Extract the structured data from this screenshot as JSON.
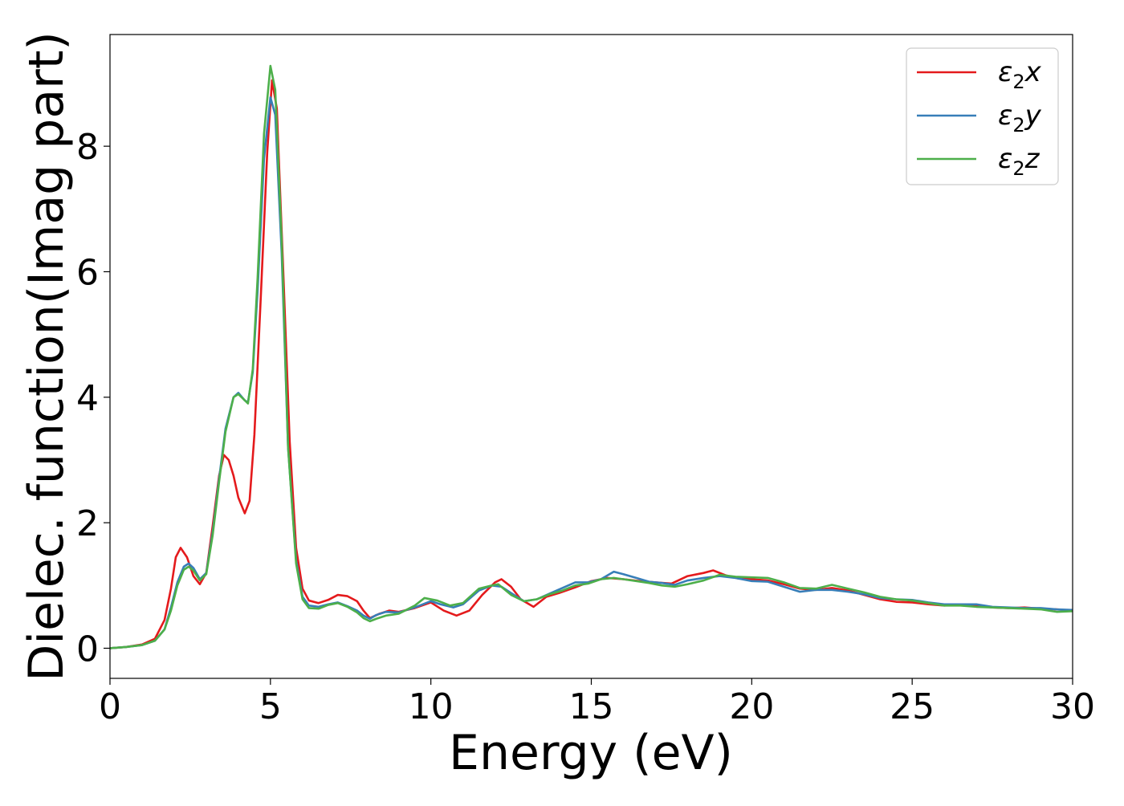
{
  "chart_data": {
    "type": "line",
    "title": "",
    "xlabel": "Energy (eV)",
    "ylabel": "Dielec. function(Imag part)",
    "xlim": [
      0,
      30
    ],
    "ylim": [
      -0.48,
      9.78
    ],
    "xticks": [
      0,
      5,
      10,
      15,
      20,
      25,
      30
    ],
    "yticks": [
      0,
      2,
      4,
      6,
      8
    ],
    "grid": false,
    "legend": "top-right",
    "series": [
      {
        "name": "ε2x",
        "legend_main": "ε",
        "legend_sub": "2",
        "legend_tail": "x",
        "color": "#e41a1c",
        "points": [
          [
            0,
            0.0
          ],
          [
            0.5,
            0.02
          ],
          [
            1.0,
            0.06
          ],
          [
            1.4,
            0.15
          ],
          [
            1.7,
            0.45
          ],
          [
            1.9,
            0.95
          ],
          [
            2.05,
            1.45
          ],
          [
            2.2,
            1.6
          ],
          [
            2.4,
            1.45
          ],
          [
            2.6,
            1.15
          ],
          [
            2.8,
            1.02
          ],
          [
            3.0,
            1.2
          ],
          [
            3.2,
            1.95
          ],
          [
            3.4,
            2.75
          ],
          [
            3.55,
            3.08
          ],
          [
            3.7,
            3.0
          ],
          [
            3.85,
            2.75
          ],
          [
            4.0,
            2.4
          ],
          [
            4.2,
            2.15
          ],
          [
            4.35,
            2.35
          ],
          [
            4.5,
            3.4
          ],
          [
            4.7,
            5.6
          ],
          [
            4.9,
            7.9
          ],
          [
            5.05,
            9.05
          ],
          [
            5.2,
            8.6
          ],
          [
            5.4,
            6.0
          ],
          [
            5.6,
            3.3
          ],
          [
            5.8,
            1.6
          ],
          [
            6.0,
            0.95
          ],
          [
            6.2,
            0.76
          ],
          [
            6.5,
            0.72
          ],
          [
            6.8,
            0.77
          ],
          [
            7.1,
            0.85
          ],
          [
            7.4,
            0.83
          ],
          [
            7.7,
            0.75
          ],
          [
            7.9,
            0.6
          ],
          [
            8.1,
            0.48
          ],
          [
            8.4,
            0.55
          ],
          [
            8.7,
            0.6
          ],
          [
            9.0,
            0.58
          ],
          [
            9.5,
            0.64
          ],
          [
            10.0,
            0.73
          ],
          [
            10.4,
            0.6
          ],
          [
            10.8,
            0.52
          ],
          [
            11.2,
            0.6
          ],
          [
            11.6,
            0.85
          ],
          [
            12.0,
            1.05
          ],
          [
            12.2,
            1.1
          ],
          [
            12.5,
            0.98
          ],
          [
            12.8,
            0.78
          ],
          [
            13.2,
            0.66
          ],
          [
            13.6,
            0.82
          ],
          [
            14.0,
            0.88
          ],
          [
            14.5,
            0.97
          ],
          [
            15.0,
            1.07
          ],
          [
            15.5,
            1.12
          ],
          [
            16.0,
            1.1
          ],
          [
            16.5,
            1.07
          ],
          [
            17.0,
            1.05
          ],
          [
            17.5,
            1.03
          ],
          [
            18.0,
            1.15
          ],
          [
            18.5,
            1.2
          ],
          [
            18.8,
            1.24
          ],
          [
            19.2,
            1.16
          ],
          [
            19.6,
            1.11
          ],
          [
            20.0,
            1.1
          ],
          [
            20.5,
            1.08
          ],
          [
            21.0,
            1.02
          ],
          [
            21.5,
            0.95
          ],
          [
            22.0,
            0.93
          ],
          [
            22.5,
            0.96
          ],
          [
            23.0,
            0.92
          ],
          [
            23.5,
            0.85
          ],
          [
            24.0,
            0.78
          ],
          [
            24.5,
            0.74
          ],
          [
            25.0,
            0.73
          ],
          [
            25.5,
            0.7
          ],
          [
            26.0,
            0.68
          ],
          [
            26.5,
            0.7
          ],
          [
            27.0,
            0.68
          ],
          [
            27.5,
            0.65
          ],
          [
            28.0,
            0.64
          ],
          [
            28.5,
            0.65
          ],
          [
            29.0,
            0.63
          ],
          [
            29.5,
            0.62
          ],
          [
            30.0,
            0.6
          ]
        ]
      },
      {
        "name": "ε2y",
        "legend_main": "ε",
        "legend_sub": "2",
        "legend_tail": "y",
        "color": "#377eb8",
        "points": [
          [
            0,
            0.0
          ],
          [
            0.5,
            0.02
          ],
          [
            1.0,
            0.05
          ],
          [
            1.4,
            0.12
          ],
          [
            1.7,
            0.3
          ],
          [
            1.9,
            0.65
          ],
          [
            2.1,
            1.05
          ],
          [
            2.3,
            1.3
          ],
          [
            2.45,
            1.35
          ],
          [
            2.6,
            1.28
          ],
          [
            2.8,
            1.1
          ],
          [
            3.0,
            1.2
          ],
          [
            3.2,
            1.85
          ],
          [
            3.4,
            2.7
          ],
          [
            3.6,
            3.5
          ],
          [
            3.85,
            4.0
          ],
          [
            4.0,
            4.07
          ],
          [
            4.2,
            3.95
          ],
          [
            4.3,
            3.92
          ],
          [
            4.45,
            4.4
          ],
          [
            4.6,
            5.7
          ],
          [
            4.8,
            7.8
          ],
          [
            5.0,
            8.78
          ],
          [
            5.15,
            8.5
          ],
          [
            5.35,
            6.3
          ],
          [
            5.55,
            3.2
          ],
          [
            5.8,
            1.4
          ],
          [
            6.0,
            0.82
          ],
          [
            6.2,
            0.68
          ],
          [
            6.5,
            0.66
          ],
          [
            6.8,
            0.7
          ],
          [
            7.1,
            0.73
          ],
          [
            7.4,
            0.67
          ],
          [
            7.7,
            0.6
          ],
          [
            7.9,
            0.52
          ],
          [
            8.1,
            0.47
          ],
          [
            8.3,
            0.53
          ],
          [
            8.6,
            0.58
          ],
          [
            9.0,
            0.57
          ],
          [
            9.5,
            0.65
          ],
          [
            10.0,
            0.75
          ],
          [
            10.3,
            0.7
          ],
          [
            10.7,
            0.65
          ],
          [
            11.0,
            0.7
          ],
          [
            11.5,
            0.92
          ],
          [
            11.9,
            1.0
          ],
          [
            12.2,
            0.98
          ],
          [
            12.5,
            0.88
          ],
          [
            12.9,
            0.75
          ],
          [
            13.3,
            0.78
          ],
          [
            13.7,
            0.87
          ],
          [
            14.1,
            0.96
          ],
          [
            14.5,
            1.05
          ],
          [
            14.9,
            1.05
          ],
          [
            15.3,
            1.1
          ],
          [
            15.7,
            1.22
          ],
          [
            16.0,
            1.18
          ],
          [
            16.4,
            1.12
          ],
          [
            16.8,
            1.06
          ],
          [
            17.2,
            1.04
          ],
          [
            17.6,
            1.01
          ],
          [
            18.0,
            1.08
          ],
          [
            18.5,
            1.12
          ],
          [
            19.0,
            1.15
          ],
          [
            19.5,
            1.12
          ],
          [
            20.0,
            1.07
          ],
          [
            20.5,
            1.06
          ],
          [
            21.0,
            0.98
          ],
          [
            21.5,
            0.9
          ],
          [
            22.0,
            0.93
          ],
          [
            22.5,
            0.93
          ],
          [
            23.0,
            0.9
          ],
          [
            23.5,
            0.86
          ],
          [
            24.0,
            0.8
          ],
          [
            24.5,
            0.78
          ],
          [
            25.0,
            0.77
          ],
          [
            25.5,
            0.73
          ],
          [
            26.0,
            0.7
          ],
          [
            26.5,
            0.7
          ],
          [
            27.0,
            0.7
          ],
          [
            27.5,
            0.66
          ],
          [
            28.0,
            0.65
          ],
          [
            28.5,
            0.64
          ],
          [
            29.0,
            0.64
          ],
          [
            29.5,
            0.62
          ],
          [
            30.0,
            0.61
          ]
        ]
      },
      {
        "name": "ε2z",
        "legend_main": "ε",
        "legend_sub": "2",
        "legend_tail": "z",
        "color": "#4daf4a",
        "points": [
          [
            0,
            0.0
          ],
          [
            0.5,
            0.02
          ],
          [
            1.0,
            0.05
          ],
          [
            1.4,
            0.12
          ],
          [
            1.7,
            0.3
          ],
          [
            1.9,
            0.6
          ],
          [
            2.1,
            1.0
          ],
          [
            2.3,
            1.25
          ],
          [
            2.45,
            1.3
          ],
          [
            2.6,
            1.24
          ],
          [
            2.8,
            1.08
          ],
          [
            3.0,
            1.18
          ],
          [
            3.2,
            1.8
          ],
          [
            3.4,
            2.65
          ],
          [
            3.6,
            3.45
          ],
          [
            3.85,
            4.0
          ],
          [
            4.0,
            4.05
          ],
          [
            4.2,
            3.95
          ],
          [
            4.3,
            3.9
          ],
          [
            4.45,
            4.45
          ],
          [
            4.6,
            5.9
          ],
          [
            4.8,
            8.2
          ],
          [
            5.0,
            9.28
          ],
          [
            5.15,
            8.9
          ],
          [
            5.35,
            6.5
          ],
          [
            5.55,
            3.2
          ],
          [
            5.8,
            1.35
          ],
          [
            6.0,
            0.78
          ],
          [
            6.2,
            0.64
          ],
          [
            6.5,
            0.63
          ],
          [
            6.8,
            0.69
          ],
          [
            7.1,
            0.72
          ],
          [
            7.4,
            0.66
          ],
          [
            7.7,
            0.57
          ],
          [
            7.9,
            0.48
          ],
          [
            8.1,
            0.43
          ],
          [
            8.3,
            0.47
          ],
          [
            8.6,
            0.52
          ],
          [
            9.0,
            0.55
          ],
          [
            9.5,
            0.68
          ],
          [
            9.8,
            0.8
          ],
          [
            10.2,
            0.76
          ],
          [
            10.6,
            0.68
          ],
          [
            11.0,
            0.72
          ],
          [
            11.5,
            0.95
          ],
          [
            11.9,
            1.0
          ],
          [
            12.1,
            1.02
          ],
          [
            12.5,
            0.85
          ],
          [
            12.9,
            0.75
          ],
          [
            13.3,
            0.78
          ],
          [
            13.7,
            0.86
          ],
          [
            14.1,
            0.92
          ],
          [
            14.5,
            1.0
          ],
          [
            14.9,
            1.03
          ],
          [
            15.3,
            1.1
          ],
          [
            15.7,
            1.12
          ],
          [
            16.0,
            1.1
          ],
          [
            16.4,
            1.07
          ],
          [
            16.8,
            1.04
          ],
          [
            17.2,
            1.0
          ],
          [
            17.6,
            0.98
          ],
          [
            18.0,
            1.02
          ],
          [
            18.5,
            1.08
          ],
          [
            19.0,
            1.17
          ],
          [
            19.5,
            1.14
          ],
          [
            20.0,
            1.13
          ],
          [
            20.5,
            1.12
          ],
          [
            21.0,
            1.05
          ],
          [
            21.5,
            0.96
          ],
          [
            22.0,
            0.95
          ],
          [
            22.5,
            1.01
          ],
          [
            23.0,
            0.95
          ],
          [
            23.5,
            0.89
          ],
          [
            24.0,
            0.82
          ],
          [
            24.5,
            0.78
          ],
          [
            25.0,
            0.76
          ],
          [
            25.5,
            0.72
          ],
          [
            26.0,
            0.68
          ],
          [
            26.5,
            0.68
          ],
          [
            27.0,
            0.66
          ],
          [
            27.5,
            0.65
          ],
          [
            28.0,
            0.64
          ],
          [
            28.5,
            0.63
          ],
          [
            29.0,
            0.62
          ],
          [
            29.5,
            0.58
          ],
          [
            30.0,
            0.59
          ]
        ]
      }
    ]
  }
}
